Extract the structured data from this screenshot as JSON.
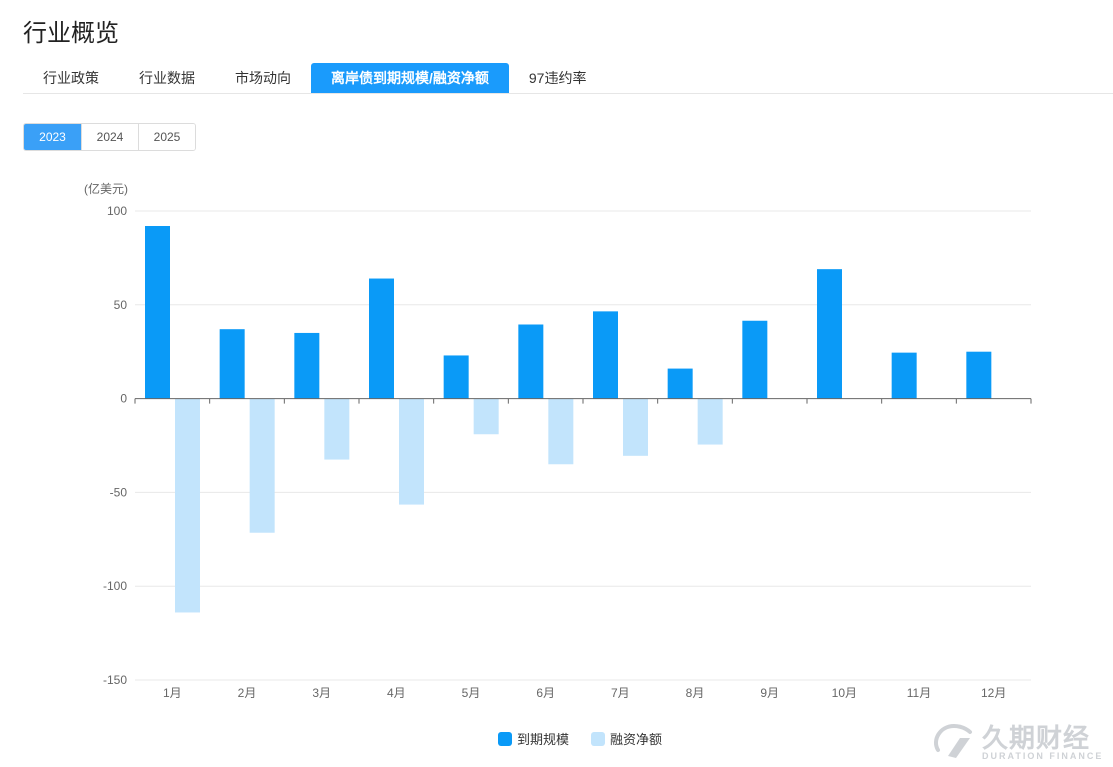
{
  "page": {
    "title": "行业概览"
  },
  "tabs": [
    {
      "label": "行业政策",
      "active": false
    },
    {
      "label": "行业数据",
      "active": false
    },
    {
      "label": "市场动向",
      "active": false
    },
    {
      "label": "离岸债到期规模/融资净额",
      "active": true
    },
    {
      "label": "97违约率",
      "active": false
    }
  ],
  "years": [
    {
      "label": "2023",
      "active": true
    },
    {
      "label": "2024",
      "active": false
    },
    {
      "label": "2025",
      "active": false
    }
  ],
  "watermark": {
    "text": "久期财经",
    "subtext": "DURATION FINANCE"
  },
  "colors": {
    "accent": "#1a9bfc",
    "series1": "#0a9af7",
    "series2": "#c2e4fc"
  },
  "chart_data": {
    "type": "bar",
    "unit_label": "(亿美元)",
    "categories": [
      "1月",
      "2月",
      "3月",
      "4月",
      "5月",
      "6月",
      "7月",
      "8月",
      "9月",
      "10月",
      "11月",
      "12月"
    ],
    "series": [
      {
        "name": "到期规模",
        "color": "#0a9af7",
        "values": [
          92,
          37,
          35,
          64,
          23,
          39.5,
          46.5,
          16,
          41.5,
          69,
          24.5,
          25
        ]
      },
      {
        "name": "融资净额",
        "color": "#c2e4fc",
        "values": [
          -114,
          -71.5,
          -32.5,
          -56.5,
          -19,
          -35,
          -30.5,
          -24.5,
          null,
          null,
          null,
          null
        ]
      }
    ],
    "ylim": [
      -150,
      100
    ],
    "yticks": [
      100,
      50,
      0,
      -50,
      -100,
      -150
    ],
    "grid": true,
    "legend_position": "bottom-center"
  }
}
